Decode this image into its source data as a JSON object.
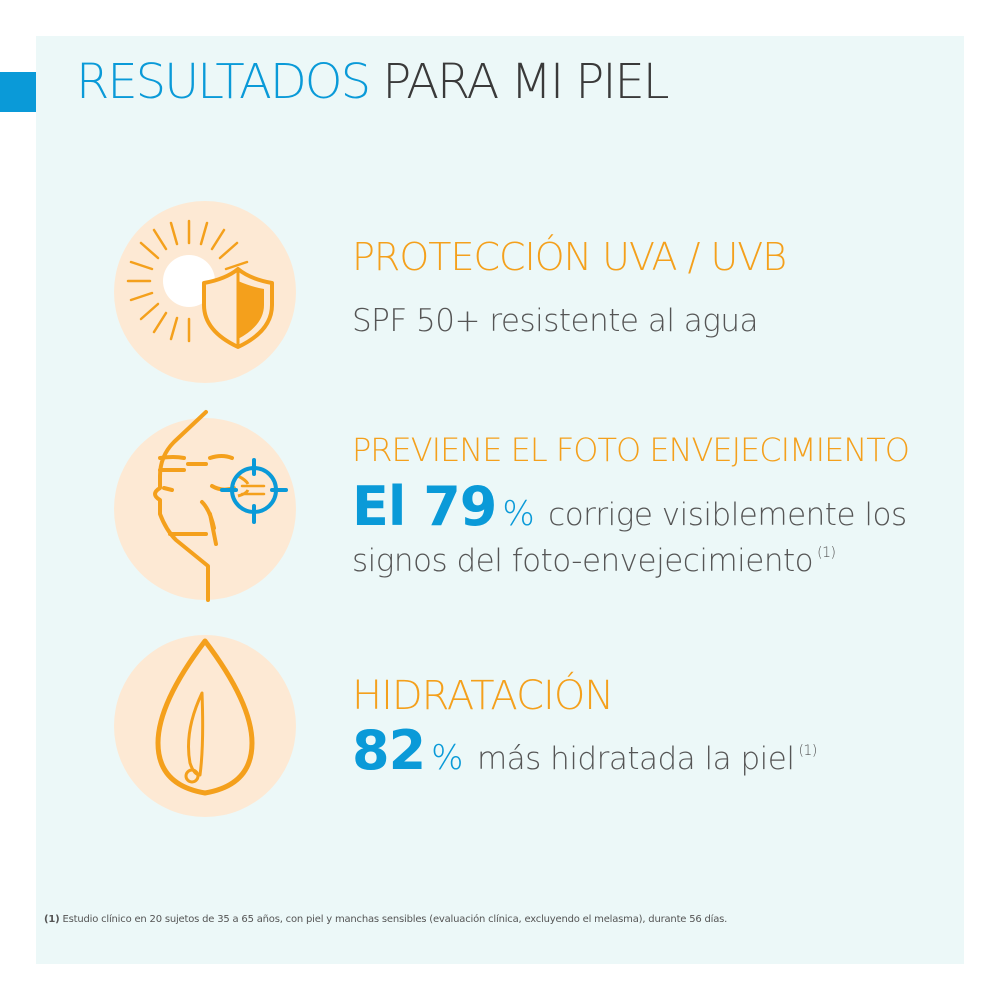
{
  "title": {
    "part1": "RESULTADOS",
    "part2": "PARA MI PIEL"
  },
  "colors": {
    "accent_blue": "#0a9ad8",
    "accent_orange": "#f4a01c",
    "circle_bg": "#fde9d4",
    "panel_bg": "#ecf8f8"
  },
  "sections": [
    {
      "icon": "sun-shield-icon",
      "heading": "PROTECCIÓN UVA / UVB",
      "text": "SPF 50+ resistente al agua"
    },
    {
      "icon": "face-target-icon",
      "heading": "PREVIENE EL FOTO ENVEJECIMIENTO",
      "stat_number": "El 79",
      "stat_unit": "%",
      "text_line1": "corrige visiblemente los",
      "text_line2": "signos del foto-envejecimiento",
      "footnote_ref": "(1)"
    },
    {
      "icon": "water-drop-icon",
      "heading": "HIDRATACIÓN",
      "stat_number": "82",
      "stat_unit": "%",
      "text": "más hidratada la piel",
      "footnote_ref": "(1)"
    }
  ],
  "footnote": {
    "ref": "(1)",
    "text": "Estudio clínico en 20 sujetos de 35 a 65 años, con piel y manchas sensibles (evaluación clínica, excluyendo el melasma), durante 56 días."
  }
}
